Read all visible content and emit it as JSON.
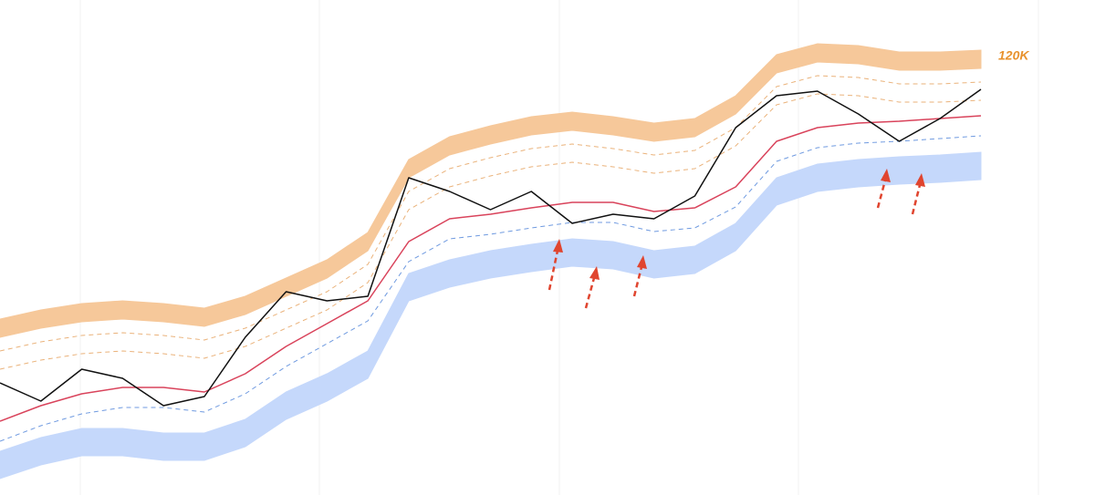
{
  "chart_data": {
    "type": "line",
    "ylim": [
      0,
      135.75
    ],
    "annotation": "120K",
    "annotation_color": "#e8922e",
    "bands": [
      {
        "color": "#f6c89a",
        "upper": [
          48.25,
          50.75,
          52.5,
          53.25,
          52.5,
          51.25,
          54.5,
          59.5,
          64.5,
          72,
          92,
          98.25,
          101.25,
          103.75,
          105,
          103.75,
          102,
          103.25,
          109.5,
          120.75,
          123.75,
          123.25,
          121.5,
          121.5,
          122
        ],
        "lower": [
          43.25,
          45.75,
          47.5,
          48.25,
          47.5,
          46.25,
          49.5,
          54.5,
          59.5,
          67,
          87,
          93.25,
          96.25,
          98.75,
          100,
          98.75,
          97,
          98.25,
          104.5,
          115.75,
          118.75,
          118.25,
          116.5,
          116.5,
          117
        ]
      },
      {
        "color": "#c5d8fb",
        "upper": [
          12,
          15.75,
          18.25,
          18.25,
          17,
          17,
          20.75,
          28.25,
          33.25,
          39.5,
          60.75,
          64.5,
          67,
          68.75,
          70.25,
          69.5,
          67,
          68.25,
          74.5,
          87,
          90.75,
          92,
          92.75,
          93.25,
          94
        ],
        "lower": [
          4.5,
          8.25,
          10.75,
          10.75,
          9.5,
          9.5,
          13.25,
          20.75,
          25.75,
          32,
          53.25,
          57,
          59.5,
          61.25,
          62.75,
          62,
          59.5,
          60.75,
          67,
          79.5,
          83.25,
          84.5,
          85.25,
          85.75,
          86.5
        ]
      }
    ],
    "series": [
      {
        "color": "#eab27a",
        "dashed": true,
        "values": [
          39.5,
          42,
          43.75,
          44.5,
          43.75,
          42.5,
          45.75,
          50.75,
          55.75,
          63.25,
          83.25,
          89.5,
          92.5,
          95,
          96.25,
          95,
          93.25,
          94.5,
          100.75,
          112,
          115,
          114.5,
          112.75,
          112.75,
          113.25
        ]
      },
      {
        "color": "#eab27a",
        "dashed": true,
        "values": [
          34.5,
          37,
          38.75,
          39.5,
          38.75,
          37.5,
          40.75,
          45.75,
          50.75,
          58.25,
          78.25,
          84.5,
          87.5,
          90,
          91.25,
          90,
          88.25,
          89.5,
          95.75,
          107,
          110,
          109.5,
          107.75,
          107.75,
          108.25
        ]
      },
      {
        "color": "#6f9ae0",
        "dashed": true,
        "values": [
          14.75,
          19,
          22.25,
          24,
          24,
          22.75,
          27.75,
          35.25,
          41.5,
          47.75,
          64,
          70.25,
          71.5,
          73.25,
          74.75,
          74.75,
          72.25,
          73.25,
          79,
          91.5,
          95.25,
          96.5,
          97,
          97.75,
          98.5
        ]
      },
      {
        "color": "#d9435b",
        "dashed": false,
        "values": [
          20.25,
          24.5,
          27.75,
          29.5,
          29.5,
          28.25,
          33.25,
          40.75,
          47,
          53.25,
          69.5,
          75.75,
          77,
          78.75,
          80.25,
          80.25,
          77.75,
          78.75,
          84.5,
          97,
          100.75,
          102,
          102.5,
          103.25,
          104
        ]
      },
      {
        "color": "#111111",
        "dashed": false,
        "values": [
          30.75,
          25.75,
          34.5,
          32,
          24.5,
          27,
          43.25,
          55.75,
          53.25,
          54.5,
          87,
          83.25,
          78.25,
          83.25,
          74.5,
          77,
          75.75,
          82,
          100.75,
          109.5,
          110.75,
          104.5,
          97,
          103.25,
          111.25
        ]
      }
    ]
  }
}
